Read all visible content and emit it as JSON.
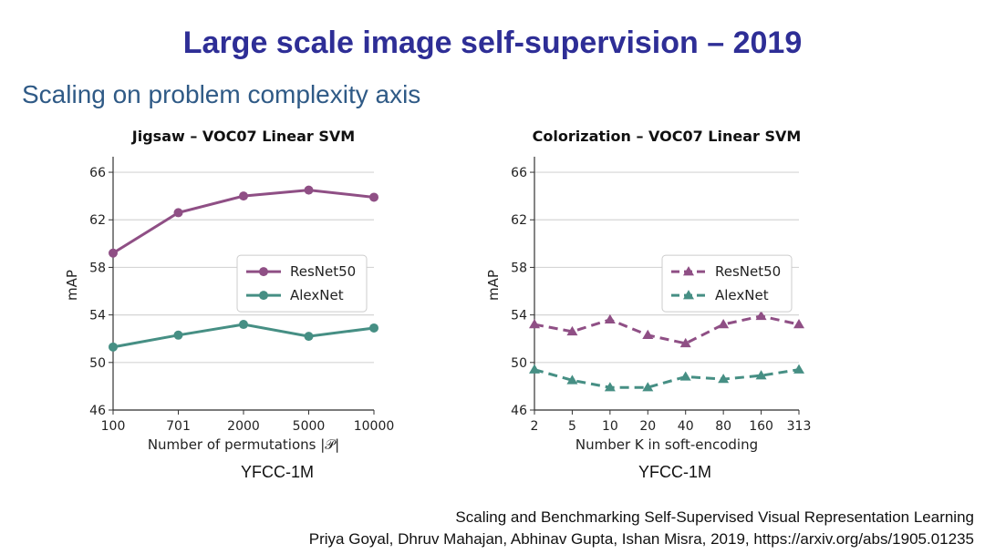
{
  "slide": {
    "title": "Large scale image self-supervision – 2019",
    "subtitle": "Scaling on problem complexity axis",
    "citation_line1": "Scaling and Benchmarking Self-Supervised Visual Representation Learning",
    "citation_line2": "Priya Goyal, Dhruv Mahajan, Abhinav Gupta, Ishan Misra, 2019, https://arxiv.org/abs/1905.01235"
  },
  "colors": {
    "resnet": "#8f4f85",
    "alexnet": "#468f84",
    "grid": "#d5d5d5",
    "axis": "#333333"
  },
  "chart_data": [
    {
      "type": "line",
      "title": "Jigsaw  – VOC07 Linear SVM",
      "xlabel": "Number of permutations |𝒫|",
      "ylabel": "mAP",
      "dataset_label": "YFCC-1M",
      "categories": [
        "100",
        "701",
        "2000",
        "5000",
        "10000"
      ],
      "ylim": [
        46,
        67
      ],
      "yticks": [
        46,
        50,
        54,
        58,
        62,
        66
      ],
      "marker": "circle",
      "dashed": false,
      "legend": "center-right",
      "series": [
        {
          "name": "ResNet50",
          "values": [
            59.2,
            62.6,
            64.0,
            64.5,
            63.9
          ]
        },
        {
          "name": "AlexNet",
          "values": [
            51.3,
            52.3,
            53.2,
            52.2,
            52.9
          ]
        }
      ]
    },
    {
      "type": "line",
      "title": "Colorization  – VOC07 Linear SVM",
      "xlabel": "Number K in soft-encoding",
      "ylabel": "mAP",
      "dataset_label": "YFCC-1M",
      "categories": [
        "2",
        "5",
        "10",
        "20",
        "40",
        "80",
        "160",
        "313"
      ],
      "ylim": [
        46,
        67
      ],
      "yticks": [
        46,
        50,
        54,
        58,
        62,
        66
      ],
      "marker": "triangle",
      "dashed": true,
      "legend": "center-right",
      "series": [
        {
          "name": "ResNet50",
          "values": [
            53.2,
            52.6,
            53.6,
            52.3,
            51.6,
            53.2,
            53.9,
            53.2
          ]
        },
        {
          "name": "AlexNet",
          "values": [
            49.4,
            48.5,
            47.9,
            47.9,
            48.8,
            48.6,
            48.9,
            49.4
          ]
        }
      ]
    }
  ]
}
